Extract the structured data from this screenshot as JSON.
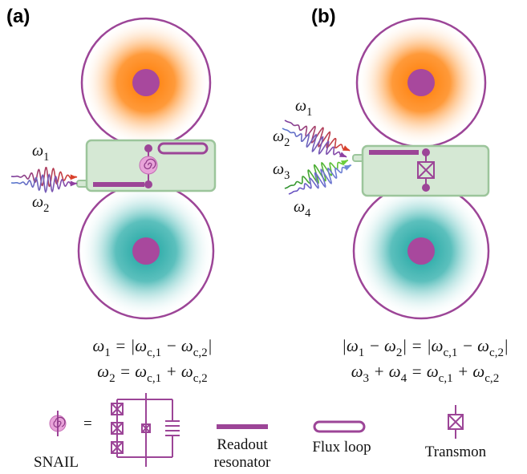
{
  "panels": {
    "a": {
      "label": "(a)",
      "waves": [
        [
          "ω",
          "1"
        ],
        [
          "ω",
          "2"
        ]
      ],
      "equations": [
        [
          "ω",
          "1",
          " = |ω",
          "c,1",
          " − ω",
          "c,2",
          "|"
        ],
        [
          "ω",
          "2",
          " = ω",
          "c,1",
          " + ω",
          "c,2"
        ]
      ]
    },
    "b": {
      "label": "(b)",
      "waves": [
        [
          "ω",
          "1"
        ],
        [
          "ω",
          "2"
        ],
        [
          "ω",
          "3"
        ],
        [
          "ω",
          "4"
        ]
      ],
      "equations": [
        [
          "|ω",
          "1",
          " − ω",
          "2",
          "| = |ω",
          "c,1",
          " − ω",
          "c,2",
          "|"
        ],
        [
          "ω",
          "3",
          " + ω",
          "4",
          " = ω",
          "c,1",
          " + ω",
          "c,2"
        ]
      ]
    }
  },
  "legend": {
    "snail": "SNAIL",
    "equals": "=",
    "readout": [
      "Readout",
      "resonator"
    ],
    "flux": "Flux loop",
    "transmon": "Transmon"
  }
}
